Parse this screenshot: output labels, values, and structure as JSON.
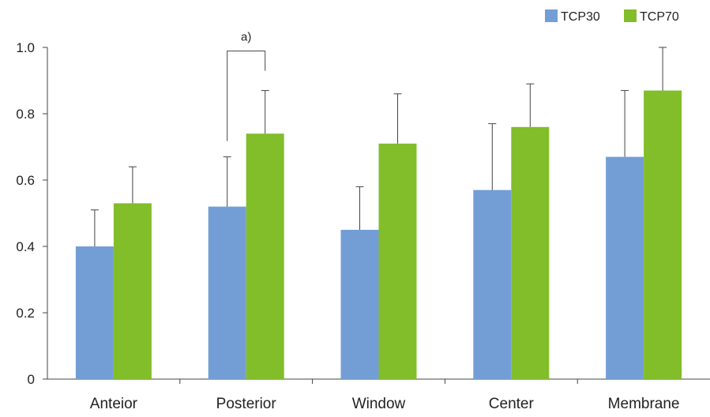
{
  "chart_data": {
    "type": "bar",
    "categories": [
      "Anteior",
      "Posterior",
      "Window",
      "Center",
      "Membrane"
    ],
    "series": [
      {
        "name": "TCP30",
        "color": "#739ed5",
        "values": [
          0.4,
          0.52,
          0.45,
          0.57,
          0.67
        ],
        "error_plus": [
          0.11,
          0.15,
          0.13,
          0.2,
          0.2
        ]
      },
      {
        "name": "TCP70",
        "color": "#82bd2a",
        "values": [
          0.53,
          0.74,
          0.71,
          0.76,
          0.87
        ],
        "error_plus": [
          0.11,
          0.13,
          0.15,
          0.13,
          0.13
        ]
      }
    ],
    "ylim": [
      0,
      1.0
    ],
    "yticks": [
      {
        "value": 0,
        "label": "0"
      },
      {
        "value": 0.2,
        "label": "0.2"
      },
      {
        "value": 0.4,
        "label": "0.4"
      },
      {
        "value": 0.6,
        "label": "0.6"
      },
      {
        "value": 0.8,
        "label": "0.8"
      },
      {
        "value": 1.0,
        "label": "1.0"
      }
    ],
    "grid": false,
    "legend_position": "top-right",
    "annotations": [
      {
        "text": "a)",
        "category_index": 1,
        "type": "significance-bracket"
      }
    ],
    "title": "",
    "xlabel": "",
    "ylabel": ""
  }
}
